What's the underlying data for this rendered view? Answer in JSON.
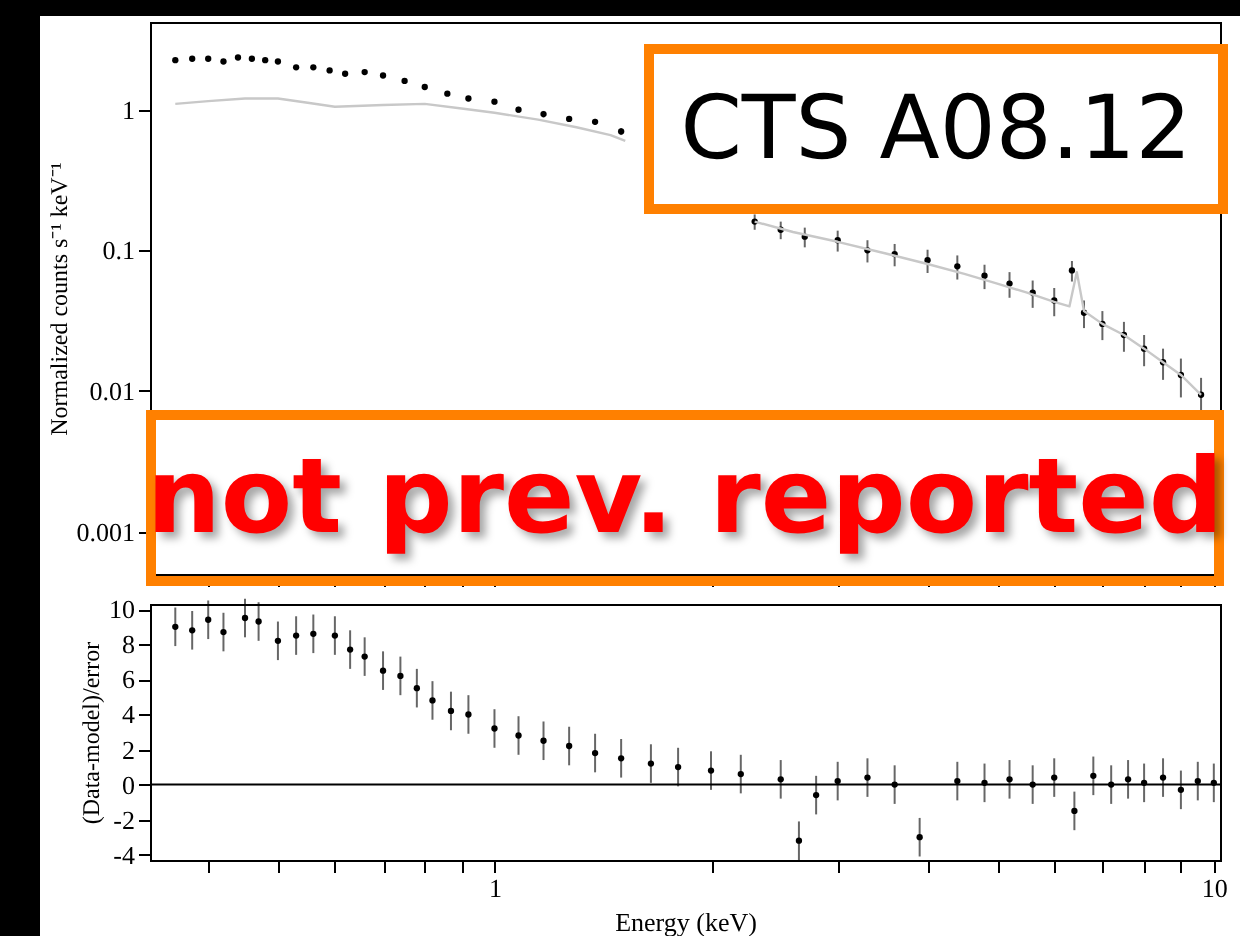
{
  "chart_data": [
    {
      "type": "scatter",
      "ylabel": "Normalized counts s⁻¹ keV⁻¹",
      "log": "xy",
      "xlim": [
        0.332,
        10.2
      ],
      "ylim": [
        0.0005,
        4.2
      ],
      "tick_labels": "y",
      "marker": "circle",
      "xticks": [
        {
          "value": 0.4,
          "label": null
        },
        {
          "value": 0.5,
          "label": null
        },
        {
          "value": 0.6,
          "label": null
        },
        {
          "value": 0.7,
          "label": null
        },
        {
          "value": 0.8,
          "label": null
        },
        {
          "value": 0.9,
          "label": null
        },
        {
          "value": 1,
          "label": null
        },
        {
          "value": 2,
          "label": null
        },
        {
          "value": 3,
          "label": null
        },
        {
          "value": 4,
          "label": null
        },
        {
          "value": 5,
          "label": null
        },
        {
          "value": 6,
          "label": null
        },
        {
          "value": 7,
          "label": null
        },
        {
          "value": 8,
          "label": null
        },
        {
          "value": 9,
          "label": null
        },
        {
          "value": 10,
          "label": null
        }
      ],
      "yticks": [
        0.001,
        0.01,
        0.1,
        1
      ],
      "annotations": [
        "CTS A08.12",
        "not prev. reported"
      ],
      "series": [
        {
          "type": "line",
          "marker": "none",
          "color": "#c8c8c8",
          "x": [
            0.36,
            0.4,
            0.45,
            0.5,
            0.55,
            0.6,
            0.7,
            0.8,
            0.9,
            1.0,
            1.15,
            1.3,
            1.45,
            1.52,
            1.9,
            2.3,
            2.6,
            3.0,
            3.5,
            4.0,
            4.5,
            5.0,
            5.5,
            6.0,
            6.3,
            6.45,
            6.6,
            7.0,
            7.5,
            8.0,
            8.5,
            9.0,
            9.6
          ],
          "values": [
            1.1,
            1.15,
            1.2,
            1.2,
            1.12,
            1.05,
            1.08,
            1.1,
            1.02,
            0.95,
            0.85,
            0.75,
            0.66,
            0.6,
            null,
            0.16,
            0.135,
            0.115,
            0.095,
            0.08,
            0.068,
            0.058,
            0.05,
            0.043,
            0.04,
            0.07,
            0.037,
            0.03,
            0.025,
            0.02,
            0.016,
            0.013,
            0.0094
          ]
        },
        {
          "color": "#000000",
          "x": [
            0.36,
            0.38,
            0.4,
            0.42,
            0.44,
            0.46,
            0.48,
            0.5,
            0.53,
            0.56,
            0.59,
            0.62,
            0.66,
            0.7,
            0.75,
            0.8,
            0.86,
            0.92,
            1.0,
            1.08,
            1.17,
            1.27,
            1.38,
            1.5,
            2.3,
            2.5,
            2.7,
            3.0,
            3.3,
            3.6,
            4.0,
            4.4,
            4.8,
            5.2,
            5.6,
            6.0,
            6.35,
            6.6,
            7.0,
            7.5,
            8.0,
            8.5,
            9.0,
            9.6
          ],
          "values": [
            2.25,
            2.3,
            2.3,
            2.2,
            2.35,
            2.3,
            2.25,
            2.2,
            2.0,
            2.0,
            1.9,
            1.8,
            1.85,
            1.75,
            1.6,
            1.45,
            1.3,
            1.2,
            1.14,
            1.0,
            0.93,
            0.86,
            0.82,
            0.7,
            0.16,
            0.14,
            0.125,
            0.118,
            0.1,
            0.094,
            0.085,
            0.077,
            0.066,
            0.058,
            0.05,
            0.044,
            0.072,
            0.036,
            0.03,
            0.025,
            0.02,
            0.016,
            0.013,
            0.0094
          ],
          "errors": [
            0.08,
            0.08,
            0.08,
            0.08,
            0.08,
            0.08,
            0.08,
            0.08,
            0.07,
            0.07,
            0.07,
            0.07,
            0.07,
            0.06,
            0.06,
            0.06,
            0.05,
            0.05,
            0.05,
            0.05,
            0.05,
            0.04,
            0.04,
            0.04,
            0.02,
            0.02,
            0.02,
            0.02,
            0.018,
            0.017,
            0.016,
            0.015,
            0.013,
            0.012,
            0.011,
            0.01,
            0.012,
            0.008,
            0.007,
            0.006,
            0.005,
            0.004,
            0.004,
            0.003
          ]
        }
      ]
    },
    {
      "type": "scatter",
      "xlabel": "Energy (keV)",
      "ylabel": "(Data-model)/error",
      "log": "x",
      "xlim": [
        0.332,
        10.2
      ],
      "ylim": [
        -4.3,
        10.3
      ],
      "marker": "circle",
      "xticks": [
        {
          "value": 0.4,
          "label": null
        },
        {
          "value": 0.5,
          "label": null
        },
        {
          "value": 0.6,
          "label": null
        },
        {
          "value": 0.7,
          "label": null
        },
        {
          "value": 0.8,
          "label": null
        },
        {
          "value": 0.9,
          "label": null
        },
        1,
        {
          "value": 2,
          "label": null
        },
        {
          "value": 3,
          "label": null
        },
        {
          "value": 4,
          "label": null
        },
        {
          "value": 5,
          "label": null
        },
        {
          "value": 6,
          "label": null
        },
        {
          "value": 7,
          "label": null
        },
        {
          "value": 8,
          "label": null
        },
        {
          "value": 9,
          "label": null
        },
        10
      ],
      "yticks": [
        -4,
        -2,
        0,
        2,
        4,
        6,
        8,
        10
      ],
      "ref_lines": [
        {
          "axis": "y",
          "value": 0,
          "color": "#000000"
        }
      ],
      "series": [
        {
          "color": "#000000",
          "x": [
            0.36,
            0.38,
            0.4,
            0.42,
            0.45,
            0.47,
            0.5,
            0.53,
            0.56,
            0.6,
            0.63,
            0.66,
            0.7,
            0.74,
            0.78,
            0.82,
            0.87,
            0.92,
            1.0,
            1.08,
            1.17,
            1.27,
            1.38,
            1.5,
            1.65,
            1.8,
            2.0,
            2.2,
            2.5,
            2.65,
            2.8,
            3.0,
            3.3,
            3.6,
            3.9,
            4.4,
            4.8,
            5.2,
            5.6,
            6.0,
            6.4,
            6.8,
            7.2,
            7.6,
            8.0,
            8.5,
            9.0,
            9.5,
            10.0
          ],
          "values": [
            9.0,
            8.8,
            9.4,
            8.7,
            9.5,
            9.3,
            8.2,
            8.5,
            8.6,
            8.5,
            7.7,
            7.3,
            6.5,
            6.2,
            5.5,
            4.8,
            4.2,
            4.0,
            3.2,
            2.8,
            2.5,
            2.2,
            1.8,
            1.5,
            1.2,
            1.0,
            0.8,
            0.6,
            0.3,
            -3.2,
            -0.6,
            0.2,
            0.4,
            0.0,
            -3.0,
            0.2,
            0.1,
            0.3,
            0.0,
            0.4,
            -1.5,
            0.5,
            0.0,
            0.3,
            0.1,
            0.4,
            -0.3,
            0.2,
            0.1
          ],
          "errors": [
            1.1,
            1.1,
            1.1,
            1.1,
            1.1,
            1.1,
            1.1,
            1.1,
            1.1,
            1.1,
            1.1,
            1.1,
            1.1,
            1.1,
            1.1,
            1.1,
            1.1,
            1.1,
            1.1,
            1.1,
            1.1,
            1.1,
            1.1,
            1.1,
            1.1,
            1.1,
            1.1,
            1.1,
            1.1,
            1.1,
            1.1,
            1.1,
            1.1,
            1.1,
            1.1,
            1.1,
            1.1,
            1.1,
            1.1,
            1.1,
            1.1,
            1.1,
            1.1,
            1.1,
            1.1,
            1.1,
            1.1,
            1.1,
            1.1
          ]
        }
      ]
    }
  ]
}
